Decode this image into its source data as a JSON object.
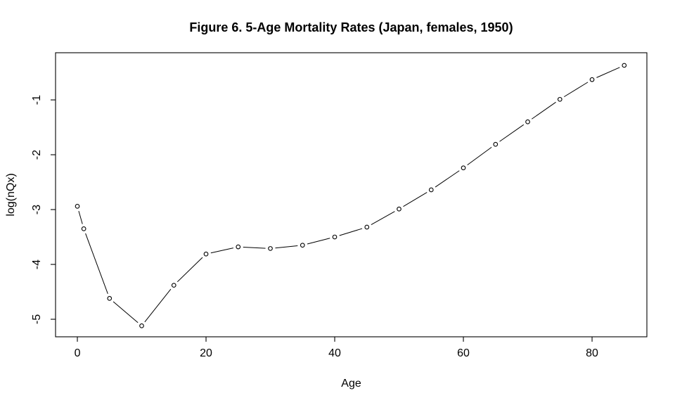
{
  "chart_data": {
    "type": "line",
    "style": "r-base-type-b-open-circles",
    "title": "Figure 6. 5-Age Mortality Rates (Japan, females, 1950)",
    "xlabel": "Age",
    "ylabel": "log(nQx)",
    "x": [
      0,
      1,
      5,
      10,
      15,
      20,
      25,
      30,
      35,
      40,
      45,
      50,
      55,
      60,
      65,
      70,
      75,
      80,
      85
    ],
    "y": [
      -2.94,
      -3.35,
      -4.62,
      -5.12,
      -4.38,
      -3.81,
      -3.68,
      -3.71,
      -3.65,
      -3.5,
      -3.32,
      -2.99,
      -2.64,
      -2.24,
      -1.81,
      -1.4,
      -0.99,
      -0.63,
      -0.37
    ],
    "x_ticks": [
      0,
      20,
      40,
      60,
      80
    ],
    "x_tick_labels": [
      "0",
      "20",
      "40",
      "60",
      "80"
    ],
    "y_ticks": [
      -1,
      -2,
      -3,
      -4,
      -5
    ],
    "y_tick_labels": [
      "-1",
      "-2",
      "-3",
      "-4",
      "-5"
    ],
    "xlim": [
      -3.39,
      88.52
    ],
    "ylim": [
      -5.32,
      -0.14
    ],
    "grid": false,
    "legend": "none",
    "marker": "open-circle",
    "line_color": "#000000",
    "marker_color": "#000000",
    "background_color": "#ffffff"
  }
}
